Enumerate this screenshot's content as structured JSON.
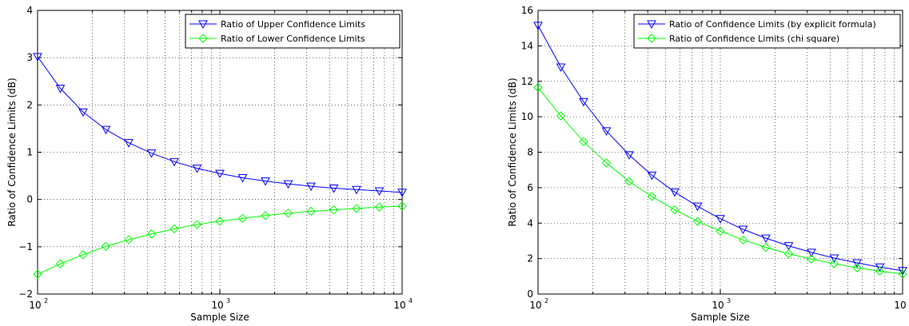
{
  "chart_data": [
    {
      "type": "line",
      "title": "",
      "xlabel": "Sample Size",
      "ylabel": "Ratio of Confidence Limits (dB)",
      "x_scale": "log",
      "xlim": [
        100,
        10000
      ],
      "ylim": [
        -2,
        4
      ],
      "x_ticks": [
        {
          "base": "10",
          "exp": "2"
        },
        {
          "base": "10",
          "exp": "3"
        },
        {
          "base": "10",
          "exp": "4"
        }
      ],
      "y_ticks": [
        "−2",
        "−1",
        "0",
        "1",
        "2",
        "3",
        "4"
      ],
      "grid": "dotted",
      "legend_position": "top-right",
      "x": [
        100,
        133.4,
        177.8,
        237.1,
        316.2,
        421.7,
        562.3,
        749.9,
        1000,
        1333.5,
        1778.3,
        2371.4,
        3162.3,
        4217,
        5623.4,
        7498.9,
        10000
      ],
      "series": [
        {
          "name": "Ratio of Upper Confidence Limits",
          "color": "#0000ff",
          "marker": "triangle-down",
          "values": [
            3.02,
            2.35,
            1.85,
            1.48,
            1.2,
            0.98,
            0.8,
            0.66,
            0.55,
            0.46,
            0.39,
            0.33,
            0.28,
            0.24,
            0.21,
            0.18,
            0.15
          ]
        },
        {
          "name": "Ratio of Lower Confidence Limits",
          "color": "#00ff00",
          "marker": "diamond",
          "values": [
            -1.58,
            -1.36,
            -1.17,
            -0.99,
            -0.85,
            -0.73,
            -0.62,
            -0.53,
            -0.46,
            -0.4,
            -0.34,
            -0.29,
            -0.25,
            -0.22,
            -0.19,
            -0.16,
            -0.14
          ]
        }
      ]
    },
    {
      "type": "line",
      "title": "",
      "xlabel": "Sample Size",
      "ylabel": "Ratio of Confidence Limits (dB)",
      "x_scale": "log",
      "xlim": [
        100,
        10000
      ],
      "ylim": [
        0,
        16
      ],
      "x_ticks": [
        {
          "base": "10",
          "exp": "2"
        },
        {
          "base": "10",
          "exp": "3"
        },
        {
          "base": "10",
          "exp": "4"
        }
      ],
      "y_ticks": [
        "0",
        "2",
        "4",
        "6",
        "8",
        "10",
        "12",
        "14",
        "16"
      ],
      "grid": "dotted",
      "legend_position": "top-right",
      "x": [
        100,
        133.4,
        177.8,
        237.1,
        316.2,
        421.7,
        562.3,
        749.9,
        1000,
        1333.5,
        1778.3,
        2371.4,
        3162.3,
        4217,
        5623.4,
        7498.9,
        10000
      ],
      "series": [
        {
          "name": "Ratio of Confidence Limits (by explicit formula)",
          "color": "#0000ff",
          "marker": "triangle-down",
          "values": [
            15.15,
            12.8,
            10.85,
            9.2,
            7.85,
            6.7,
            5.75,
            4.95,
            4.25,
            3.65,
            3.15,
            2.72,
            2.35,
            2.03,
            1.76,
            1.52,
            1.32
          ]
        },
        {
          "name": "Ratio of Confidence Limits (chi square)",
          "color": "#00ff00",
          "marker": "diamond",
          "values": [
            11.65,
            10.05,
            8.6,
            7.4,
            6.35,
            5.5,
            4.75,
            4.1,
            3.55,
            3.05,
            2.63,
            2.27,
            1.97,
            1.71,
            1.48,
            1.29,
            1.13
          ]
        }
      ]
    }
  ]
}
